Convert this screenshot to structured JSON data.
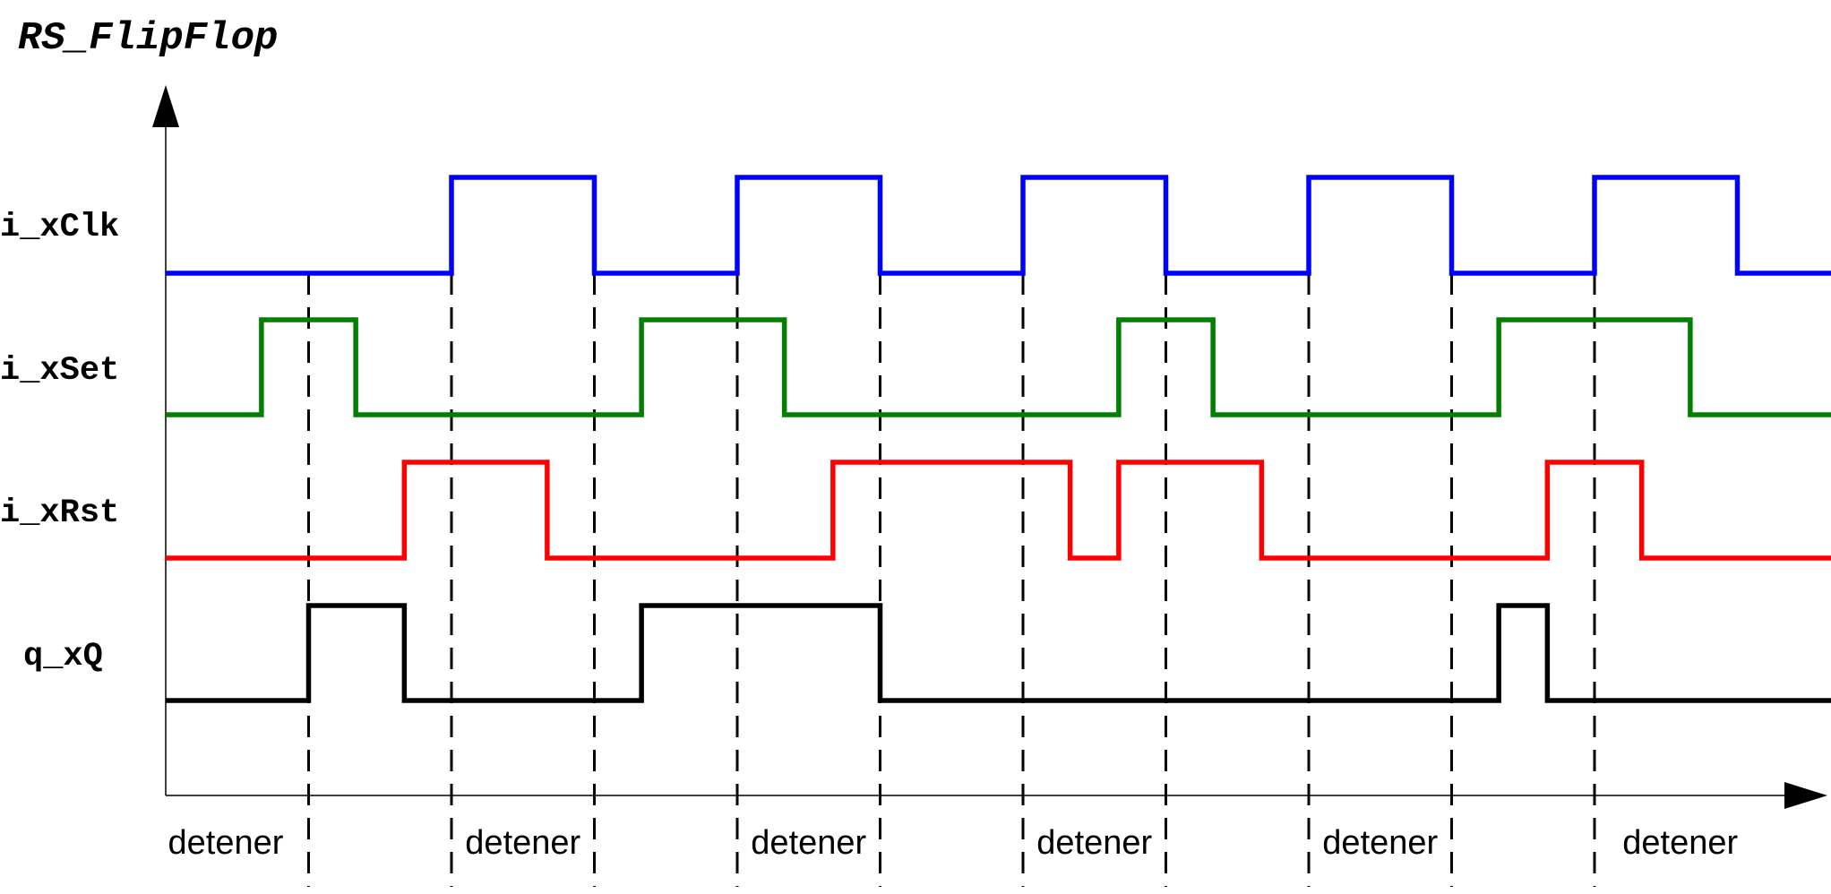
{
  "title": "RS_FlipFlop",
  "colors": {
    "i_xClk": "#0000ff",
    "i_xSet": "#008000",
    "i_xRst": "#ff0000",
    "q_xQ": "#000000"
  },
  "signals": [
    {
      "name": "i_xClk",
      "color": "#0000ff",
      "transitions": [
        0,
        2,
        3,
        4,
        5,
        6,
        7,
        8,
        9,
        10,
        11
      ],
      "start_level": 0,
      "end": 11.9
    },
    {
      "name": "i_xSet",
      "color": "#008000",
      "transitions": [
        0,
        0.67,
        1.33,
        3.33,
        4.33,
        6.67,
        7.33,
        9.33,
        10.67
      ],
      "start_level": 0,
      "end": 11.9
    },
    {
      "name": "i_xRst",
      "color": "#ff0000",
      "transitions": [
        0,
        1.67,
        2.67,
        4.67,
        6.33,
        6.67,
        7.67,
        9.67,
        10.33
      ],
      "start_level": 0,
      "end": 11.9
    },
    {
      "name": "q_xQ",
      "color": "#000000",
      "transitions": [
        0,
        1,
        1.67,
        3.33,
        5,
        9.33,
        9.67
      ],
      "start_level": 0,
      "end": 11.9
    }
  ],
  "clock_edges": [
    1,
    2,
    3,
    4,
    5,
    6,
    7,
    8,
    9,
    10
  ],
  "phase_labels": [
    {
      "text": "detener",
      "t": 0.42
    },
    {
      "text": "detener",
      "t": 2.5
    },
    {
      "text": "detener",
      "t": 4.5
    },
    {
      "text": "detener",
      "t": 6.5
    },
    {
      "text": "detener",
      "t": 8.5
    },
    {
      "text": "detener",
      "t": 10.6
    }
  ]
}
